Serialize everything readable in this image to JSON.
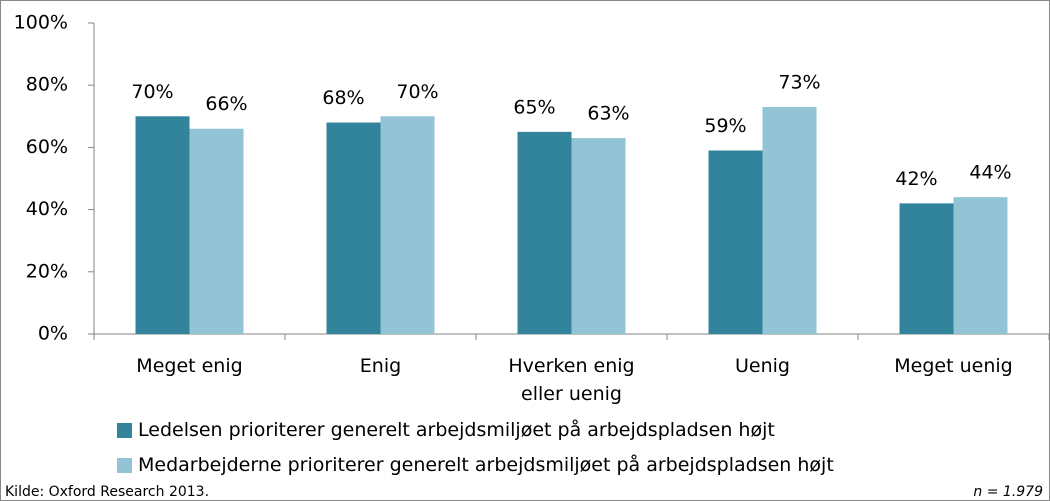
{
  "chart_data": {
    "type": "bar",
    "categories": [
      "Meget enig",
      "Enig",
      "Hverken enig eller uenig",
      "Uenig",
      "Meget uenig"
    ],
    "series": [
      {
        "name": "Ledelsen prioriterer generelt arbejdsmiljøet på arbejdspladsen højt",
        "color": "#31849b",
        "values": [
          70,
          68,
          65,
          59,
          42
        ],
        "value_labels": [
          "70%",
          "68%",
          "65%",
          "59%",
          "42%"
        ]
      },
      {
        "name": "Medarbejderne prioriterer generelt arbejdsmiljøet på arbejdspladsen højt",
        "color": "#93c4d6",
        "values": [
          66,
          70,
          63,
          73,
          44
        ],
        "value_labels": [
          "66%",
          "70%",
          "63%",
          "73%",
          "44%"
        ]
      }
    ],
    "ylim": [
      0,
      100
    ],
    "yticks": [
      {
        "value": 0,
        "label": "0%"
      },
      {
        "value": 20,
        "label": "20%"
      },
      {
        "value": 40,
        "label": "40%"
      },
      {
        "value": 60,
        "label": "60%"
      },
      {
        "value": 80,
        "label": "80%"
      },
      {
        "value": 100,
        "label": "100%"
      }
    ],
    "grid": false,
    "legend": "bottom",
    "source": "Kilde: Oxford Research 2013.",
    "note": "n = 1.979"
  }
}
